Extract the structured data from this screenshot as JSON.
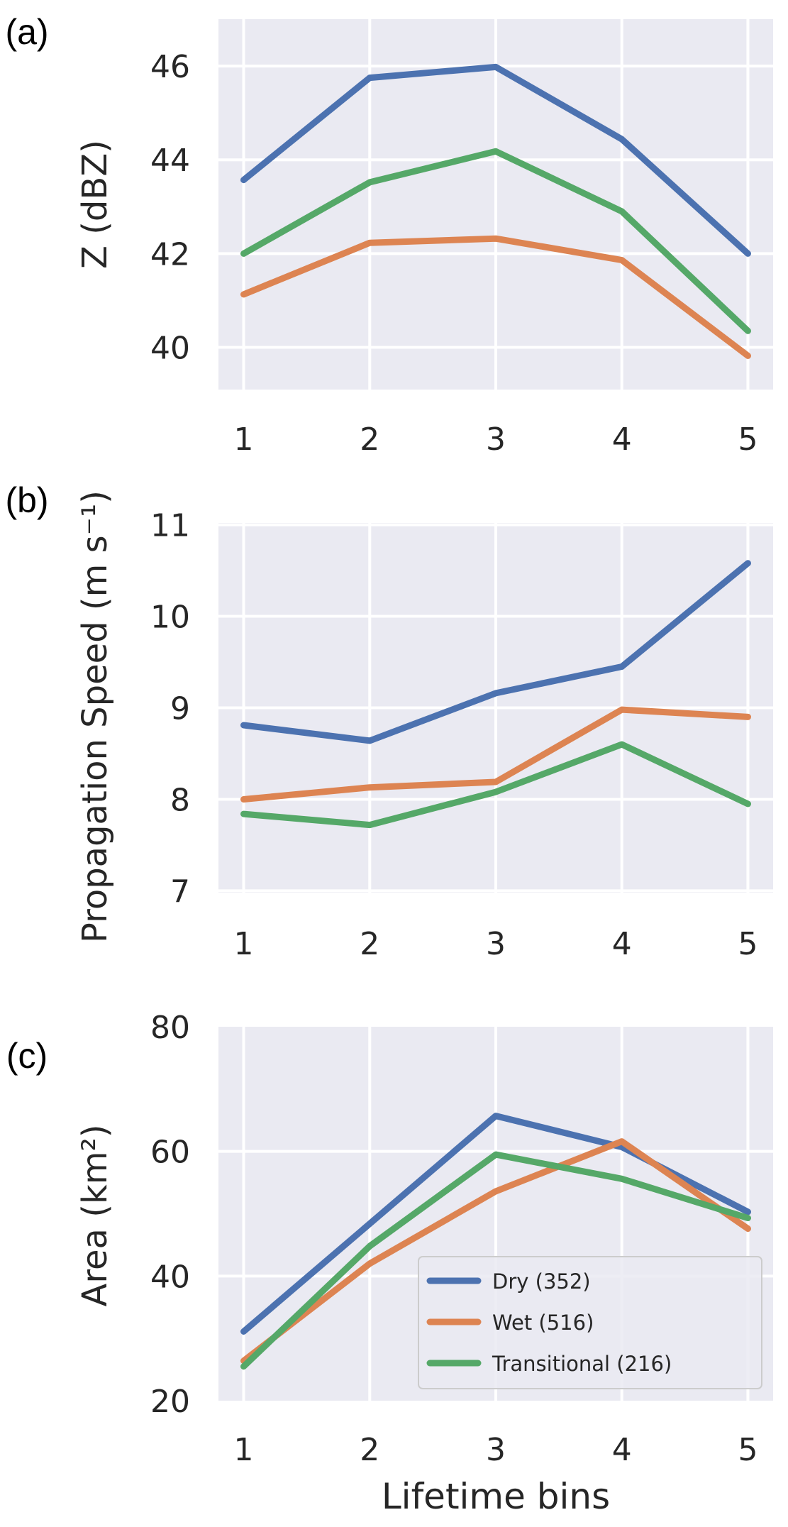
{
  "figure": {
    "background": "#ffffff",
    "axes_facecolor": "#eaeaf2",
    "grid_color": "#ffffff",
    "grid": true,
    "xlabel": "Lifetime bins"
  },
  "legend": {
    "placement": "lower-right",
    "panel": "c",
    "entries": [
      {
        "label": "Dry (352)",
        "color": "#4c72b0"
      },
      {
        "label": "Wet (516)",
        "color": "#dd8452"
      },
      {
        "label": "Transitional (216)",
        "color": "#55a868"
      }
    ]
  },
  "chart_data": [
    {
      "type": "line",
      "panel_label": "(a)",
      "ylabel": "Z (dBZ)",
      "x": [
        1,
        2,
        3,
        4,
        5
      ],
      "xticks": [
        "1",
        "2",
        "3",
        "4",
        "5"
      ],
      "xlim": [
        0.8,
        5.2
      ],
      "yticks": [
        40,
        42,
        44,
        46
      ],
      "ylim": [
        39.1,
        47.0
      ],
      "series": [
        {
          "name": "Dry (352)",
          "color": "#4c72b0",
          "values": [
            43.57,
            45.75,
            45.98,
            44.44,
            42.0
          ]
        },
        {
          "name": "Wet (516)",
          "color": "#dd8452",
          "values": [
            41.13,
            42.23,
            42.32,
            41.86,
            39.82
          ]
        },
        {
          "name": "Transitional (216)",
          "color": "#55a868",
          "values": [
            42.0,
            43.52,
            44.18,
            42.9,
            40.35
          ]
        }
      ]
    },
    {
      "type": "line",
      "panel_label": "(b)",
      "ylabel": "Propagation Speed (m s⁻¹)",
      "x": [
        1,
        2,
        3,
        4,
        5
      ],
      "xticks": [
        "1",
        "2",
        "3",
        "4",
        "5"
      ],
      "xlim": [
        0.8,
        5.2
      ],
      "yticks": [
        7,
        8,
        9,
        10,
        11
      ],
      "ylim": [
        6.98,
        11.02
      ],
      "series": [
        {
          "name": "Dry (352)",
          "color": "#4c72b0",
          "values": [
            8.81,
            8.64,
            9.16,
            9.45,
            10.58
          ]
        },
        {
          "name": "Wet (516)",
          "color": "#dd8452",
          "values": [
            8.0,
            8.13,
            8.19,
            8.98,
            8.9
          ]
        },
        {
          "name": "Transitional (216)",
          "color": "#55a868",
          "values": [
            7.84,
            7.72,
            8.08,
            8.6,
            7.95
          ]
        }
      ]
    },
    {
      "type": "line",
      "panel_label": "(c)",
      "ylabel": "Area (km²)",
      "xlabel": "Lifetime bins",
      "x": [
        1,
        2,
        3,
        4,
        5
      ],
      "xticks": [
        "1",
        "2",
        "3",
        "4",
        "5"
      ],
      "xlim": [
        0.8,
        5.2
      ],
      "yticks": [
        20,
        40,
        60,
        80
      ],
      "ylim": [
        20,
        80
      ],
      "series": [
        {
          "name": "Dry (352)",
          "color": "#4c72b0",
          "values": [
            31.1,
            48.4,
            65.7,
            60.7,
            50.3
          ]
        },
        {
          "name": "Wet (516)",
          "color": "#dd8452",
          "values": [
            26.4,
            42.0,
            53.6,
            61.6,
            47.6
          ]
        },
        {
          "name": "Transitional (216)",
          "color": "#55a868",
          "values": [
            25.5,
            44.8,
            59.5,
            55.6,
            49.3
          ]
        }
      ]
    }
  ]
}
